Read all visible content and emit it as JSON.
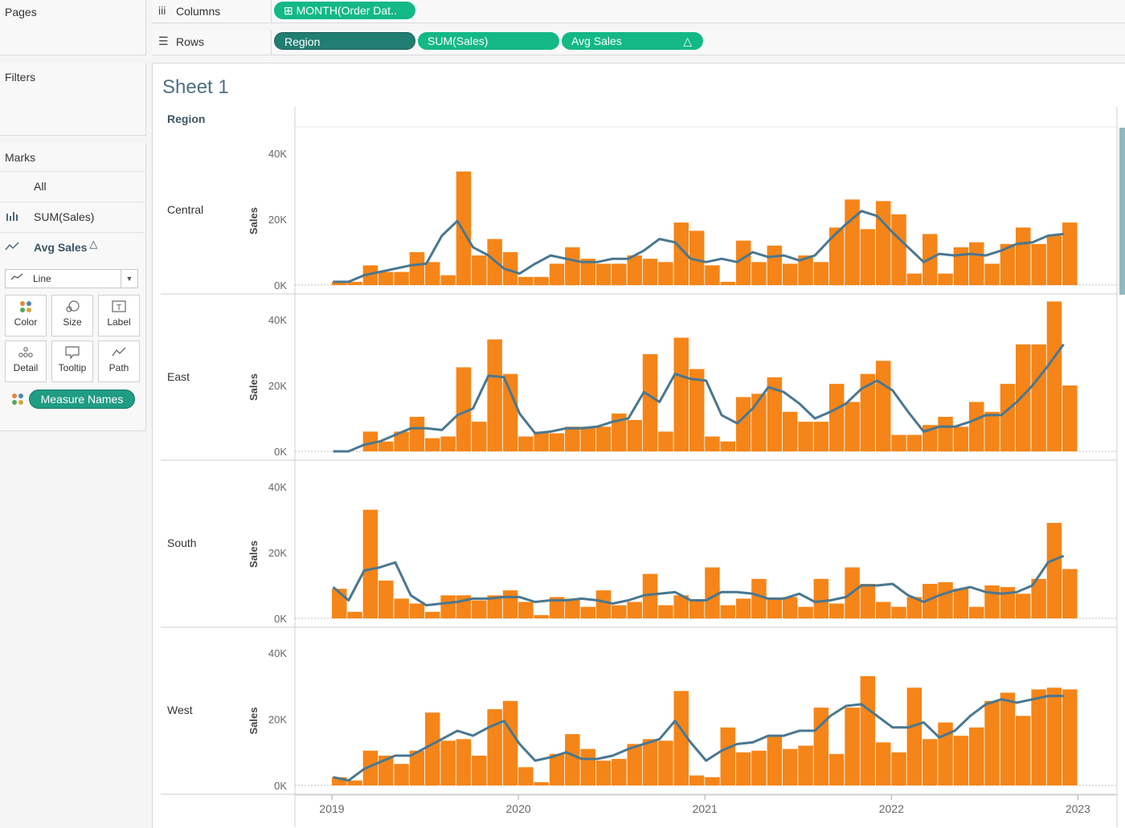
{
  "left_panel": {
    "pages_title": "Pages",
    "filters_title": "Filters",
    "marks_title": "Marks",
    "marks_cards": [
      {
        "label": "All",
        "icon": ""
      },
      {
        "label": "SUM(Sales)",
        "icon": "bar-chart-icon"
      },
      {
        "label": "Avg Sales",
        "icon": "line-chart-icon",
        "delta": "△"
      }
    ],
    "mark_type": "Line",
    "mark_buttons": [
      {
        "label": "Color",
        "icon": "color-dots-icon"
      },
      {
        "label": "Size",
        "icon": "size-icon"
      },
      {
        "label": "Label",
        "icon": "label-icon"
      },
      {
        "label": "Detail",
        "icon": "detail-icon"
      },
      {
        "label": "Tooltip",
        "icon": "tooltip-icon"
      },
      {
        "label": "Path",
        "icon": "path-icon"
      }
    ],
    "color_pill": "Measure Names"
  },
  "shelves": {
    "columns_label": "Columns",
    "rows_label": "Rows",
    "columns_pills": [
      {
        "label": "MONTH(Order Dat..",
        "prefix": "⊞"
      }
    ],
    "rows_pills": [
      {
        "label": "Region"
      },
      {
        "label": "SUM(Sales)"
      },
      {
        "label": "Avg Sales",
        "delta": "△"
      }
    ]
  },
  "view": {
    "sheet_title": "Sheet 1",
    "region_header": "Region",
    "colors": {
      "bar": "#f58518",
      "line": "#4a7790",
      "axis_text": "#666666"
    }
  },
  "chart_data": {
    "type": "bar",
    "title": "",
    "ylabel": "Sales",
    "xlabel": "",
    "x_ticks": [
      "2019",
      "2020",
      "2021",
      "2022",
      "2023"
    ],
    "y_ticks": [
      "40K",
      "20K",
      "0K"
    ],
    "ylim": [
      0,
      44000
    ],
    "start_month": "2019-01",
    "months": 48,
    "series_names": [
      "SUM(Sales)",
      "Avg Sales"
    ],
    "panels": [
      {
        "region": "Central",
        "bars": [
          1000,
          1000,
          6000,
          4000,
          4000,
          10000,
          7000,
          3000,
          34500,
          9000,
          14000,
          10000,
          2500,
          2500,
          6500,
          11500,
          8000,
          6500,
          6500,
          9000,
          8000,
          7000,
          19000,
          16500,
          6000,
          1000,
          13500,
          7000,
          12000,
          6500,
          9000,
          7000,
          17500,
          26000,
          17000,
          25500,
          21500,
          3500,
          15500,
          3500,
          11500,
          13000,
          6500,
          12500,
          17500,
          12500,
          15000,
          19000
        ],
        "avg": [
          1000,
          1000,
          3000,
          4000,
          5000,
          6000,
          6500,
          15000,
          19500,
          11500,
          9000,
          5000,
          3500,
          6500,
          9000,
          8000,
          7000,
          7000,
          8000,
          8000,
          10500,
          14000,
          13000,
          8000,
          7000,
          8000,
          7000,
          10000,
          8500,
          9000,
          7500,
          9000,
          14000,
          18500,
          22500,
          21000,
          16000,
          11500,
          7000,
          9500,
          9000,
          9500,
          9000,
          10500,
          12500,
          13000,
          15000,
          15500
        ]
      },
      {
        "region": "East",
        "bars": [
          0,
          0,
          6000,
          3000,
          6000,
          10500,
          4000,
          4500,
          25500,
          9000,
          34000,
          23500,
          4500,
          6000,
          5500,
          7500,
          7500,
          7500,
          11500,
          9500,
          29500,
          6000,
          34500,
          25000,
          4500,
          3000,
          16500,
          17500,
          22500,
          12000,
          9000,
          9000,
          20500,
          15000,
          23500,
          27500,
          5000,
          5000,
          8000,
          10500,
          7500,
          15000,
          12000,
          20500,
          32500,
          32500,
          45500,
          20000
        ],
        "avg": [
          0,
          0,
          2000,
          3000,
          5000,
          7000,
          7000,
          6500,
          11000,
          13000,
          23000,
          22500,
          11500,
          5500,
          6000,
          7000,
          7000,
          7500,
          9000,
          10000,
          18000,
          15000,
          23500,
          22000,
          21500,
          11000,
          8500,
          13000,
          19500,
          18000,
          14500,
          10000,
          12000,
          14500,
          19000,
          21500,
          18500,
          12000,
          6000,
          7500,
          7500,
          9000,
          11000,
          11000,
          15000,
          20000,
          26000,
          32500
        ]
      },
      {
        "region": "South",
        "bars": [
          9000,
          2000,
          33000,
          11500,
          6000,
          4500,
          2000,
          7000,
          7000,
          5500,
          7000,
          8500,
          5000,
          1000,
          6500,
          6000,
          3500,
          8500,
          4000,
          5000,
          13500,
          4000,
          7000,
          5500,
          15500,
          4000,
          6000,
          12000,
          6000,
          6500,
          3500,
          12000,
          4500,
          15500,
          10500,
          5000,
          3500,
          6500,
          10500,
          11000,
          9000,
          3500,
          10000,
          9500,
          7500,
          12000,
          29000,
          15000
        ],
        "avg": [
          9500,
          5500,
          14500,
          15500,
          17000,
          7000,
          4000,
          4500,
          5000,
          6000,
          6000,
          6500,
          6500,
          5000,
          5500,
          5500,
          6000,
          5500,
          4500,
          5500,
          7000,
          7500,
          8000,
          5500,
          5500,
          8000,
          8000,
          7500,
          6000,
          6000,
          7500,
          5000,
          5500,
          6500,
          10000,
          10000,
          10500,
          7000,
          5000,
          7000,
          8500,
          9500,
          8000,
          7500,
          8000,
          10000,
          17000,
          19000
        ]
      },
      {
        "region": "West",
        "bars": [
          2500,
          1500,
          10500,
          9000,
          6500,
          10500,
          22000,
          13500,
          14000,
          9000,
          23000,
          25500,
          5500,
          1000,
          9500,
          15500,
          11000,
          7500,
          8000,
          12500,
          14000,
          13500,
          28500,
          3000,
          2500,
          17500,
          10000,
          10500,
          15000,
          11000,
          12000,
          23500,
          9500,
          23500,
          33000,
          13000,
          10000,
          29500,
          14000,
          19000,
          15000,
          17500,
          25500,
          28000,
          21000,
          29000,
          29500,
          29000
        ],
        "avg": [
          2500,
          1500,
          5000,
          7000,
          9000,
          9000,
          11500,
          14000,
          16500,
          15000,
          17500,
          19500,
          12500,
          7500,
          8500,
          10000,
          8000,
          8000,
          9000,
          11000,
          12500,
          14000,
          19500,
          13000,
          7500,
          10500,
          12500,
          13000,
          15000,
          15000,
          16500,
          16500,
          21000,
          24000,
          24500,
          21000,
          17500,
          17500,
          19000,
          14500,
          16500,
          21000,
          24500,
          26000,
          25000,
          26000,
          27000,
          27000
        ]
      }
    ]
  }
}
